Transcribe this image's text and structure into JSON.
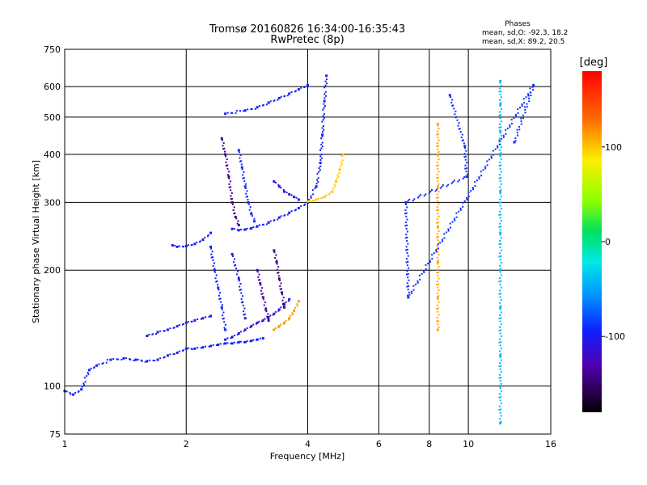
{
  "chart_data": {
    "type": "scatter",
    "title": "Tromsø 20160826 16:34:00-16:35:43",
    "subtitle": "RwPretec (8p)",
    "xlabel": "Frequency [MHz]",
    "ylabel": "Stationary phase Virtual Height [km]",
    "x_scale": "log",
    "y_scale": "log",
    "xlim": [
      1,
      16
    ],
    "ylim": [
      75,
      750
    ],
    "x_ticks": [
      1,
      2,
      4,
      6,
      8,
      10,
      16
    ],
    "x_tick_labels": [
      "1",
      "2",
      "4",
      "6",
      "8",
      "10",
      "16"
    ],
    "y_ticks": [
      75,
      100,
      200,
      300,
      400,
      500,
      600,
      750
    ],
    "y_tick_labels": [
      "75",
      "100",
      "200",
      "300",
      "400",
      "500",
      "600",
      "750"
    ],
    "grid": true,
    "annotations": {
      "phases_title": "Phases",
      "line_o": "mean, sd,O: -92.3, 18.2",
      "line_x": "mean, sd,X:  89.2, 20.5"
    },
    "colorbar": {
      "label": "[deg]",
      "range": [
        -180,
        180
      ],
      "ticks": [
        100,
        0,
        -100
      ],
      "tick_labels": [
        "100",
        "0",
        "-100"
      ]
    },
    "traces": [
      {
        "name": "",
        "x": [
          1.0,
          1.05,
          1.1,
          1.15,
          1.2,
          1.3,
          1.4,
          1.5,
          1.6,
          1.7,
          1.8,
          1.9,
          2.0,
          2.1,
          2.2,
          2.3,
          2.4,
          2.5,
          2.6,
          2.7,
          2.8,
          2.9,
          3.0,
          3.1
        ],
        "y": [
          97,
          95,
          98,
          110,
          113,
          117,
          118,
          117,
          116,
          117,
          120,
          122,
          125,
          125,
          126,
          127,
          128,
          129,
          129,
          130,
          130,
          131,
          132,
          133
        ],
        "phase": -95
      },
      {
        "name": "",
        "x": [
          1.6,
          1.7,
          1.8,
          1.9,
          2.0,
          2.1,
          2.2,
          2.3
        ],
        "y": [
          135,
          138,
          140,
          143,
          146,
          148,
          150,
          152
        ],
        "phase": -100
      },
      {
        "name": "",
        "x": [
          2.5,
          2.6,
          2.7,
          2.8,
          2.9,
          3.0,
          3.1,
          3.2,
          3.3,
          3.4,
          3.5,
          3.6
        ],
        "y": [
          132,
          134,
          137,
          140,
          143,
          146,
          148,
          151,
          154,
          158,
          163,
          168
        ],
        "phase": -105
      },
      {
        "name": "",
        "x": [
          3.3,
          3.4,
          3.5,
          3.6,
          3.7,
          3.8
        ],
        "y": [
          140,
          143,
          146,
          150,
          157,
          166
        ],
        "phase": 115
      },
      {
        "name": "",
        "x": [
          1.85,
          1.9,
          2.0,
          2.1,
          2.2,
          2.3
        ],
        "y": [
          232,
          230,
          231,
          234,
          240,
          250
        ],
        "phase": -95
      },
      {
        "name": "",
        "x": [
          2.6,
          2.7,
          2.8,
          2.9,
          3.0,
          3.2,
          3.4,
          3.6,
          3.8,
          4.0,
          4.2,
          4.3,
          4.35,
          4.4,
          4.45
        ],
        "y": [
          256,
          254,
          255,
          257,
          260,
          266,
          274,
          282,
          290,
          300,
          330,
          380,
          450,
          550,
          640
        ],
        "phase": -95
      },
      {
        "name": "",
        "x": [
          4.0,
          4.2,
          4.4,
          4.6,
          4.7,
          4.8,
          4.9
        ],
        "y": [
          302,
          305,
          310,
          320,
          340,
          365,
          400
        ],
        "phase": 100
      },
      {
        "name": "",
        "x": [
          2.45,
          2.5,
          2.55,
          2.6,
          2.65,
          2.7
        ],
        "y": [
          440,
          400,
          350,
          300,
          275,
          262
        ],
        "phase": -140
      },
      {
        "name": "",
        "x": [
          2.7,
          2.75,
          2.8,
          2.85,
          2.9,
          2.95
        ],
        "y": [
          410,
          370,
          330,
          300,
          280,
          268
        ],
        "phase": -90
      },
      {
        "name": "",
        "x": [
          3.3,
          3.4,
          3.5,
          3.6,
          3.7,
          3.8
        ],
        "y": [
          340,
          330,
          320,
          315,
          310,
          305
        ],
        "phase": -105
      },
      {
        "name": "",
        "x": [
          2.5,
          2.8,
          3.0,
          3.2,
          3.4,
          3.6,
          3.8,
          4.0
        ],
        "y": [
          510,
          520,
          530,
          545,
          560,
          575,
          590,
          605
        ],
        "phase": -95
      },
      {
        "name": "",
        "x": [
          2.3,
          2.35,
          2.4,
          2.45,
          2.5
        ],
        "y": [
          230,
          200,
          180,
          160,
          140
        ],
        "phase": -95
      },
      {
        "name": "",
        "x": [
          2.6,
          2.7,
          2.8
        ],
        "y": [
          220,
          190,
          150
        ],
        "phase": -100
      },
      {
        "name": "",
        "x": [
          3.3,
          3.35,
          3.4,
          3.45,
          3.5
        ],
        "y": [
          225,
          210,
          190,
          175,
          160
        ],
        "phase": -140
      },
      {
        "name": "",
        "x": [
          3.0,
          3.05,
          3.1,
          3.15,
          3.2
        ],
        "y": [
          200,
          185,
          170,
          158,
          148
        ],
        "phase": -130
      },
      {
        "name": "",
        "x": [
          8.4,
          8.4,
          8.4,
          8.4,
          8.4,
          8.4,
          8.4
        ],
        "y": [
          480,
          400,
          330,
          260,
          210,
          170,
          140
        ],
        "phase": 110
      },
      {
        "name": "",
        "x": [
          12.0,
          12.0,
          12.0,
          12.0,
          12.0,
          12.0,
          12.0,
          12.0,
          12.0,
          12.0,
          12.0
        ],
        "y": [
          620,
          540,
          460,
          400,
          320,
          250,
          200,
          160,
          120,
          100,
          80
        ],
        "phase": -40
      },
      {
        "name": "",
        "x": [
          9.0,
          9.8,
          9.9,
          7.0,
          7.1,
          14.5,
          13.0
        ],
        "y": [
          570,
          420,
          350,
          300,
          170,
          605,
          430
        ],
        "phase": -90
      }
    ]
  }
}
